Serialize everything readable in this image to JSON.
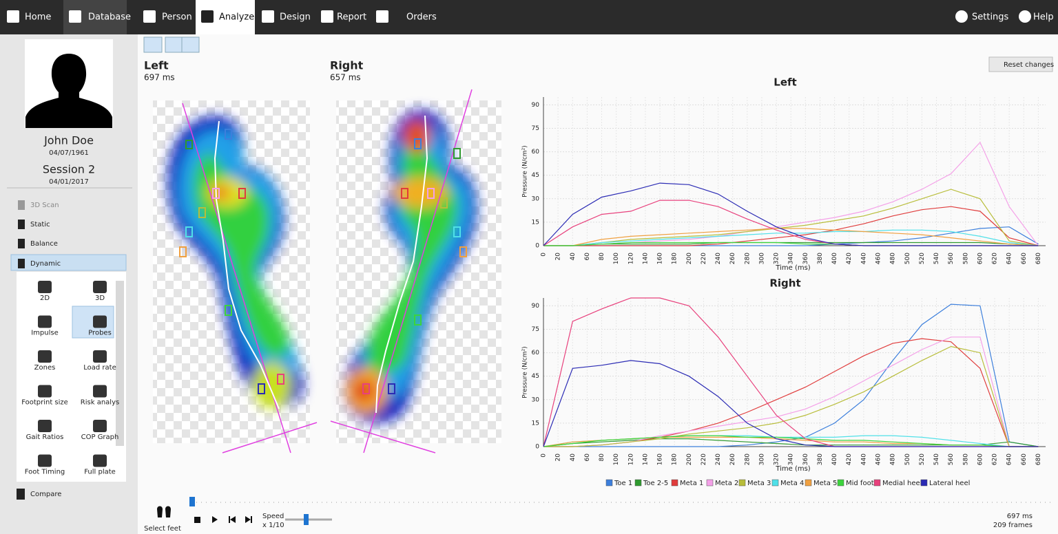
{
  "nav": {
    "left": [
      "Home",
      "Database",
      "Person",
      "Analyze",
      "Design",
      "Report",
      "Orders"
    ],
    "right": [
      "Settings",
      "Help"
    ]
  },
  "profile": {
    "name": "John Doe",
    "birth": "04/07/1961",
    "session": "Session 2",
    "session_date": "04/01/2017"
  },
  "menu": [
    "3D Scan",
    "Static",
    "Balance",
    "Dynamic"
  ],
  "tools": [
    "2D",
    "3D",
    "Impulse",
    "Probes",
    "Zones",
    "Load rate",
    "Footprint size",
    "Risk analys",
    "Gait Ratios",
    "COP Graph",
    "Foot Timing",
    "Full plate"
  ],
  "compare": "Compare",
  "feet": [
    {
      "side": "Left",
      "duration": "697 ms"
    },
    {
      "side": "Right",
      "duration": "657 ms"
    }
  ],
  "reset_button": "Reset changes",
  "legend": [
    {
      "name": "Toe 1",
      "color": "#3c7fdc"
    },
    {
      "name": "Toe 2-5",
      "color": "#2f9a2f"
    },
    {
      "name": "Meta 1",
      "color": "#e03c3c"
    },
    {
      "name": "Meta 2",
      "color": "#f4a0e8"
    },
    {
      "name": "Meta 3",
      "color": "#b8bd3a"
    },
    {
      "name": "Meta 4",
      "color": "#4fe0e8"
    },
    {
      "name": "Meta 5",
      "color": "#f0a040"
    },
    {
      "name": "Mid foot",
      "color": "#3cd43c"
    },
    {
      "name": "Medial heel",
      "color": "#e8407c"
    },
    {
      "name": "Lateral heel",
      "color": "#2a2ab4"
    }
  ],
  "charts": [
    {
      "type": "line",
      "title": "Left",
      "x_label": "Time (ms)",
      "y_label": "Pressure (N/cm²)",
      "grid": true,
      "x": [
        0,
        40,
        80,
        120,
        160,
        200,
        240,
        280,
        320,
        360,
        400,
        440,
        480,
        520,
        560,
        600,
        640,
        680
      ],
      "xlim": [
        0,
        690
      ],
      "xticks": [
        0,
        20,
        40,
        60,
        80,
        100,
        120,
        140,
        160,
        180,
        200,
        220,
        240,
        260,
        280,
        300,
        320,
        340,
        360,
        380,
        400,
        420,
        440,
        460,
        480,
        500,
        520,
        540,
        560,
        580,
        600,
        620,
        640,
        660,
        680
      ],
      "ylim": [
        0,
        95
      ],
      "yticks": [
        0,
        15,
        30,
        45,
        60,
        75,
        90
      ],
      "series": [
        {
          "values": [
            0,
            0,
            0,
            0,
            0,
            0,
            0,
            0,
            0,
            0,
            1,
            2,
            3,
            5,
            8,
            11,
            12,
            1
          ]
        },
        {
          "values": [
            0,
            0,
            1,
            1,
            1,
            1,
            2,
            2,
            2,
            2,
            2,
            2,
            2,
            2,
            2,
            2,
            1,
            0
          ]
        },
        {
          "values": [
            0,
            0,
            0,
            0,
            0,
            0,
            1,
            3,
            5,
            7,
            10,
            14,
            19,
            23,
            25,
            22,
            5,
            0
          ]
        },
        {
          "values": [
            0,
            0,
            1,
            2,
            3,
            4,
            6,
            9,
            12,
            15,
            18,
            22,
            28,
            36,
            46,
            66,
            25,
            0
          ]
        },
        {
          "values": [
            0,
            0,
            2,
            4,
            5,
            6,
            7,
            9,
            11,
            13,
            16,
            19,
            24,
            30,
            36,
            30,
            3,
            0
          ]
        },
        {
          "values": [
            0,
            0,
            2,
            3,
            4,
            5,
            6,
            7,
            8,
            8,
            9,
            9,
            10,
            10,
            9,
            6,
            2,
            0
          ]
        },
        {
          "values": [
            0,
            0,
            4,
            6,
            7,
            8,
            9,
            10,
            11,
            11,
            10,
            9,
            8,
            7,
            5,
            3,
            1,
            0
          ]
        },
        {
          "values": [
            0,
            0,
            1,
            2,
            2,
            2,
            2,
            2,
            2,
            1,
            1,
            0,
            0,
            0,
            0,
            0,
            0,
            0
          ]
        },
        {
          "values": [
            0,
            12,
            20,
            22,
            29,
            29,
            25,
            17,
            10,
            4,
            1,
            0,
            0,
            0,
            0,
            0,
            0,
            0
          ]
        },
        {
          "values": [
            0,
            20,
            31,
            35,
            40,
            39,
            33,
            22,
            12,
            5,
            1,
            0,
            0,
            0,
            0,
            0,
            0,
            0
          ]
        }
      ]
    },
    {
      "type": "line",
      "title": "Right",
      "x_label": "Time (ms)",
      "y_label": "Pressure (N/cm²)",
      "grid": true,
      "x": [
        0,
        40,
        80,
        120,
        160,
        200,
        240,
        280,
        320,
        360,
        400,
        440,
        480,
        520,
        560,
        600,
        640,
        680
      ],
      "xlim": [
        0,
        690
      ],
      "xticks": [
        0,
        20,
        40,
        60,
        80,
        100,
        120,
        140,
        160,
        180,
        200,
        220,
        240,
        260,
        280,
        300,
        320,
        340,
        360,
        380,
        400,
        420,
        440,
        460,
        480,
        500,
        520,
        540,
        560,
        580,
        600,
        620,
        640,
        660,
        680
      ],
      "ylim": [
        0,
        95
      ],
      "yticks": [
        0,
        15,
        30,
        45,
        60,
        75,
        90
      ],
      "series": [
        {
          "values": [
            0,
            0,
            0,
            0,
            0,
            0,
            0,
            1,
            3,
            6,
            15,
            30,
            55,
            78,
            91,
            90,
            3,
            0
          ]
        },
        {
          "values": [
            0,
            2,
            3,
            4,
            5,
            5,
            4,
            3,
            2,
            1,
            1,
            1,
            1,
            1,
            1,
            1,
            3,
            0
          ]
        },
        {
          "values": [
            0,
            0,
            1,
            3,
            6,
            10,
            15,
            22,
            30,
            38,
            48,
            58,
            66,
            69,
            67,
            50,
            0,
            0
          ]
        },
        {
          "values": [
            0,
            0,
            1,
            3,
            7,
            10,
            13,
            16,
            19,
            24,
            32,
            42,
            52,
            62,
            70,
            70,
            0,
            0
          ]
        },
        {
          "values": [
            0,
            0,
            1,
            3,
            5,
            8,
            10,
            12,
            15,
            20,
            27,
            35,
            45,
            55,
            64,
            60,
            0,
            0
          ]
        },
        {
          "values": [
            0,
            3,
            4,
            5,
            6,
            7,
            7,
            7,
            6,
            6,
            6,
            7,
            7,
            6,
            4,
            2,
            0,
            0
          ]
        },
        {
          "values": [
            0,
            3,
            4,
            5,
            6,
            6,
            6,
            6,
            5,
            4,
            3,
            3,
            2,
            2,
            1,
            1,
            0,
            0
          ]
        },
        {
          "values": [
            0,
            2,
            4,
            5,
            6,
            7,
            7,
            6,
            6,
            5,
            4,
            4,
            3,
            2,
            1,
            1,
            0,
            0
          ]
        },
        {
          "values": [
            0,
            80,
            88,
            95,
            95,
            90,
            70,
            45,
            20,
            5,
            0,
            0,
            0,
            0,
            0,
            0,
            0,
            0
          ]
        },
        {
          "values": [
            0,
            50,
            52,
            55,
            53,
            45,
            32,
            15,
            5,
            1,
            0,
            0,
            0,
            0,
            0,
            0,
            0,
            0
          ]
        }
      ]
    }
  ],
  "playback": {
    "select_feet": "Select feet",
    "speed_label": "Speed",
    "speed": "x 1/10",
    "time": "697 ms",
    "frames": "209 frames"
  }
}
